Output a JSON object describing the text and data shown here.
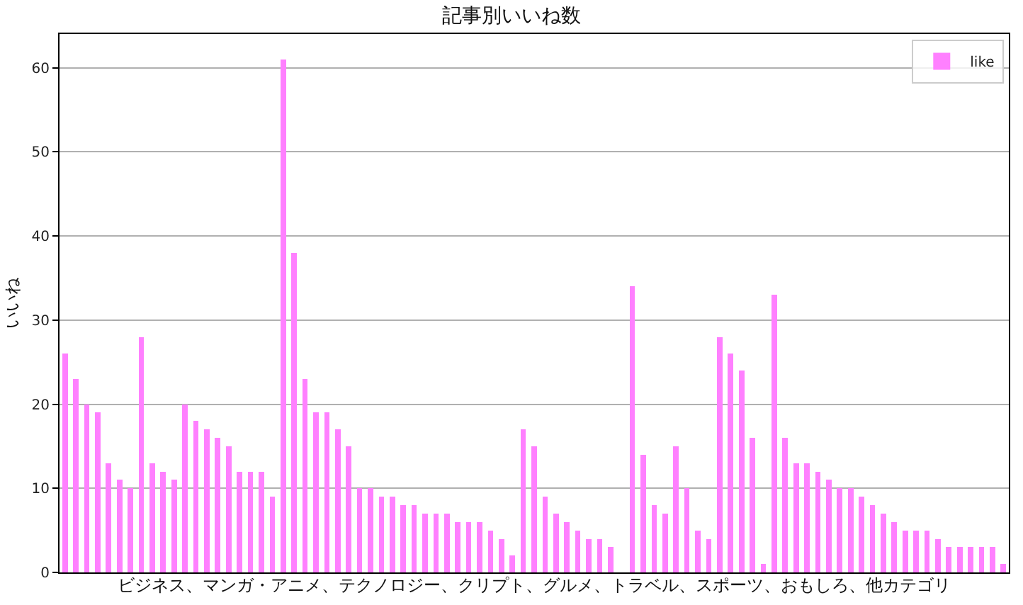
{
  "chart_data": {
    "type": "bar",
    "title": "記事別いいね数",
    "xlabel": "ビジネス、マンガ・アニメ、テクノロジー、クリプト、グルメ、トラベル、スポーツ、おもしろ、他カテゴリ",
    "ylabel": "いいね",
    "categories": [
      null,
      null,
      null,
      null,
      null,
      null,
      null,
      null,
      null,
      null,
      null,
      null,
      null,
      null,
      null,
      null,
      null,
      null,
      null,
      null,
      null,
      null,
      null,
      null,
      null,
      null,
      null,
      null,
      null,
      null,
      null,
      null,
      null,
      null,
      null,
      null,
      null,
      null,
      null,
      null,
      null,
      null,
      null,
      null,
      null,
      null,
      null,
      null,
      null,
      null,
      null,
      null,
      null,
      null,
      null,
      null,
      null,
      null,
      null,
      null,
      null,
      null,
      null,
      null,
      null,
      null,
      null,
      null,
      null,
      null,
      null,
      null,
      null,
      null,
      null,
      null,
      null,
      null,
      null,
      null,
      null,
      null,
      null,
      null,
      null,
      null,
      null
    ],
    "series": [
      {
        "name": "like",
        "color": "#ff80ff",
        "values": [
          26,
          23,
          20,
          19,
          13,
          11,
          10,
          28,
          13,
          12,
          11,
          20,
          18,
          17,
          16,
          15,
          12,
          12,
          12,
          9,
          61,
          38,
          23,
          19,
          19,
          17,
          15,
          10,
          10,
          9,
          9,
          8,
          8,
          7,
          7,
          7,
          6,
          6,
          6,
          5,
          4,
          2,
          17,
          15,
          9,
          7,
          6,
          5,
          4,
          4,
          3,
          0,
          34,
          14,
          8,
          7,
          15,
          10,
          5,
          4,
          28,
          26,
          24,
          16,
          1,
          33,
          16,
          13,
          13,
          12,
          11,
          10,
          10,
          9,
          8,
          7,
          6,
          5,
          5,
          5,
          4,
          3,
          3,
          3,
          3,
          3,
          1
        ]
      }
    ],
    "ylim": [
      0,
      64
    ],
    "yticks": [
      0,
      10,
      20,
      30,
      40,
      50,
      60
    ],
    "grid": "y",
    "legend": "top right",
    "tick_labels": "y"
  }
}
